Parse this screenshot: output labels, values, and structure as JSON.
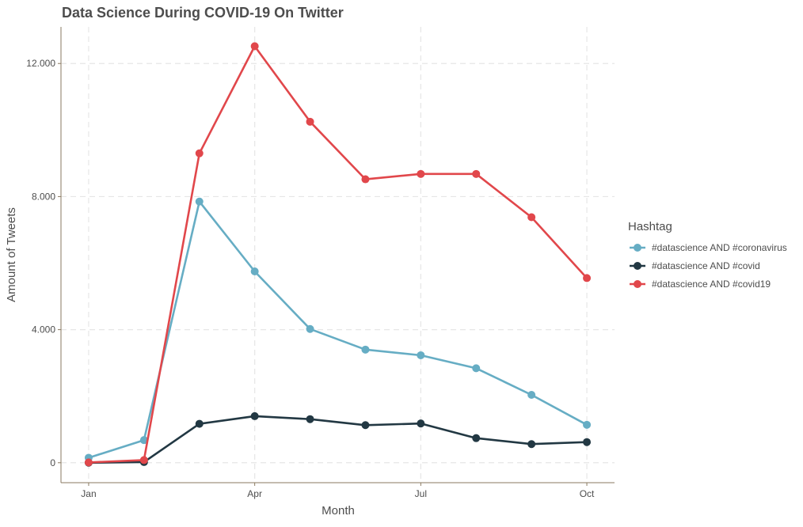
{
  "chart_data": {
    "type": "line",
    "title": "Data Science During COVID-19 On Twitter",
    "xlabel": "Month",
    "ylabel": "Amount of Tweets",
    "x": [
      1,
      2,
      3,
      4,
      5,
      6,
      7,
      8,
      9,
      10
    ],
    "x_ticks": [
      {
        "value": 1,
        "label": "Jan"
      },
      {
        "value": 4,
        "label": "Apr"
      },
      {
        "value": 7,
        "label": "Jul"
      },
      {
        "value": 10,
        "label": "Oct"
      }
    ],
    "xlim": [
      0.5,
      10.5
    ],
    "y_ticks": [
      {
        "value": 0,
        "label": "0"
      },
      {
        "value": 4000,
        "label": "4.000"
      },
      {
        "value": 8000,
        "label": "8.000"
      },
      {
        "value": 12000,
        "label": "12.000"
      }
    ],
    "ylim": [
      -600,
      13100
    ],
    "grid": true,
    "legend_title": "Hashtag",
    "legend_position": "right",
    "series": [
      {
        "name": "#datascience AND #coronavirus",
        "color": "#66ADC4",
        "values": [
          150,
          680,
          7850,
          5750,
          4020,
          3400,
          3230,
          2840,
          2040,
          1140
        ]
      },
      {
        "name": "#datascience AND #covid",
        "color": "#223843",
        "values": [
          0,
          20,
          1170,
          1400,
          1310,
          1130,
          1180,
          740,
          560,
          620
        ]
      },
      {
        "name": "#datascience AND #covid19",
        "color": "#E1474B",
        "values": [
          10,
          80,
          9300,
          12520,
          10250,
          8520,
          8680,
          8680,
          7380,
          5550
        ]
      }
    ]
  }
}
